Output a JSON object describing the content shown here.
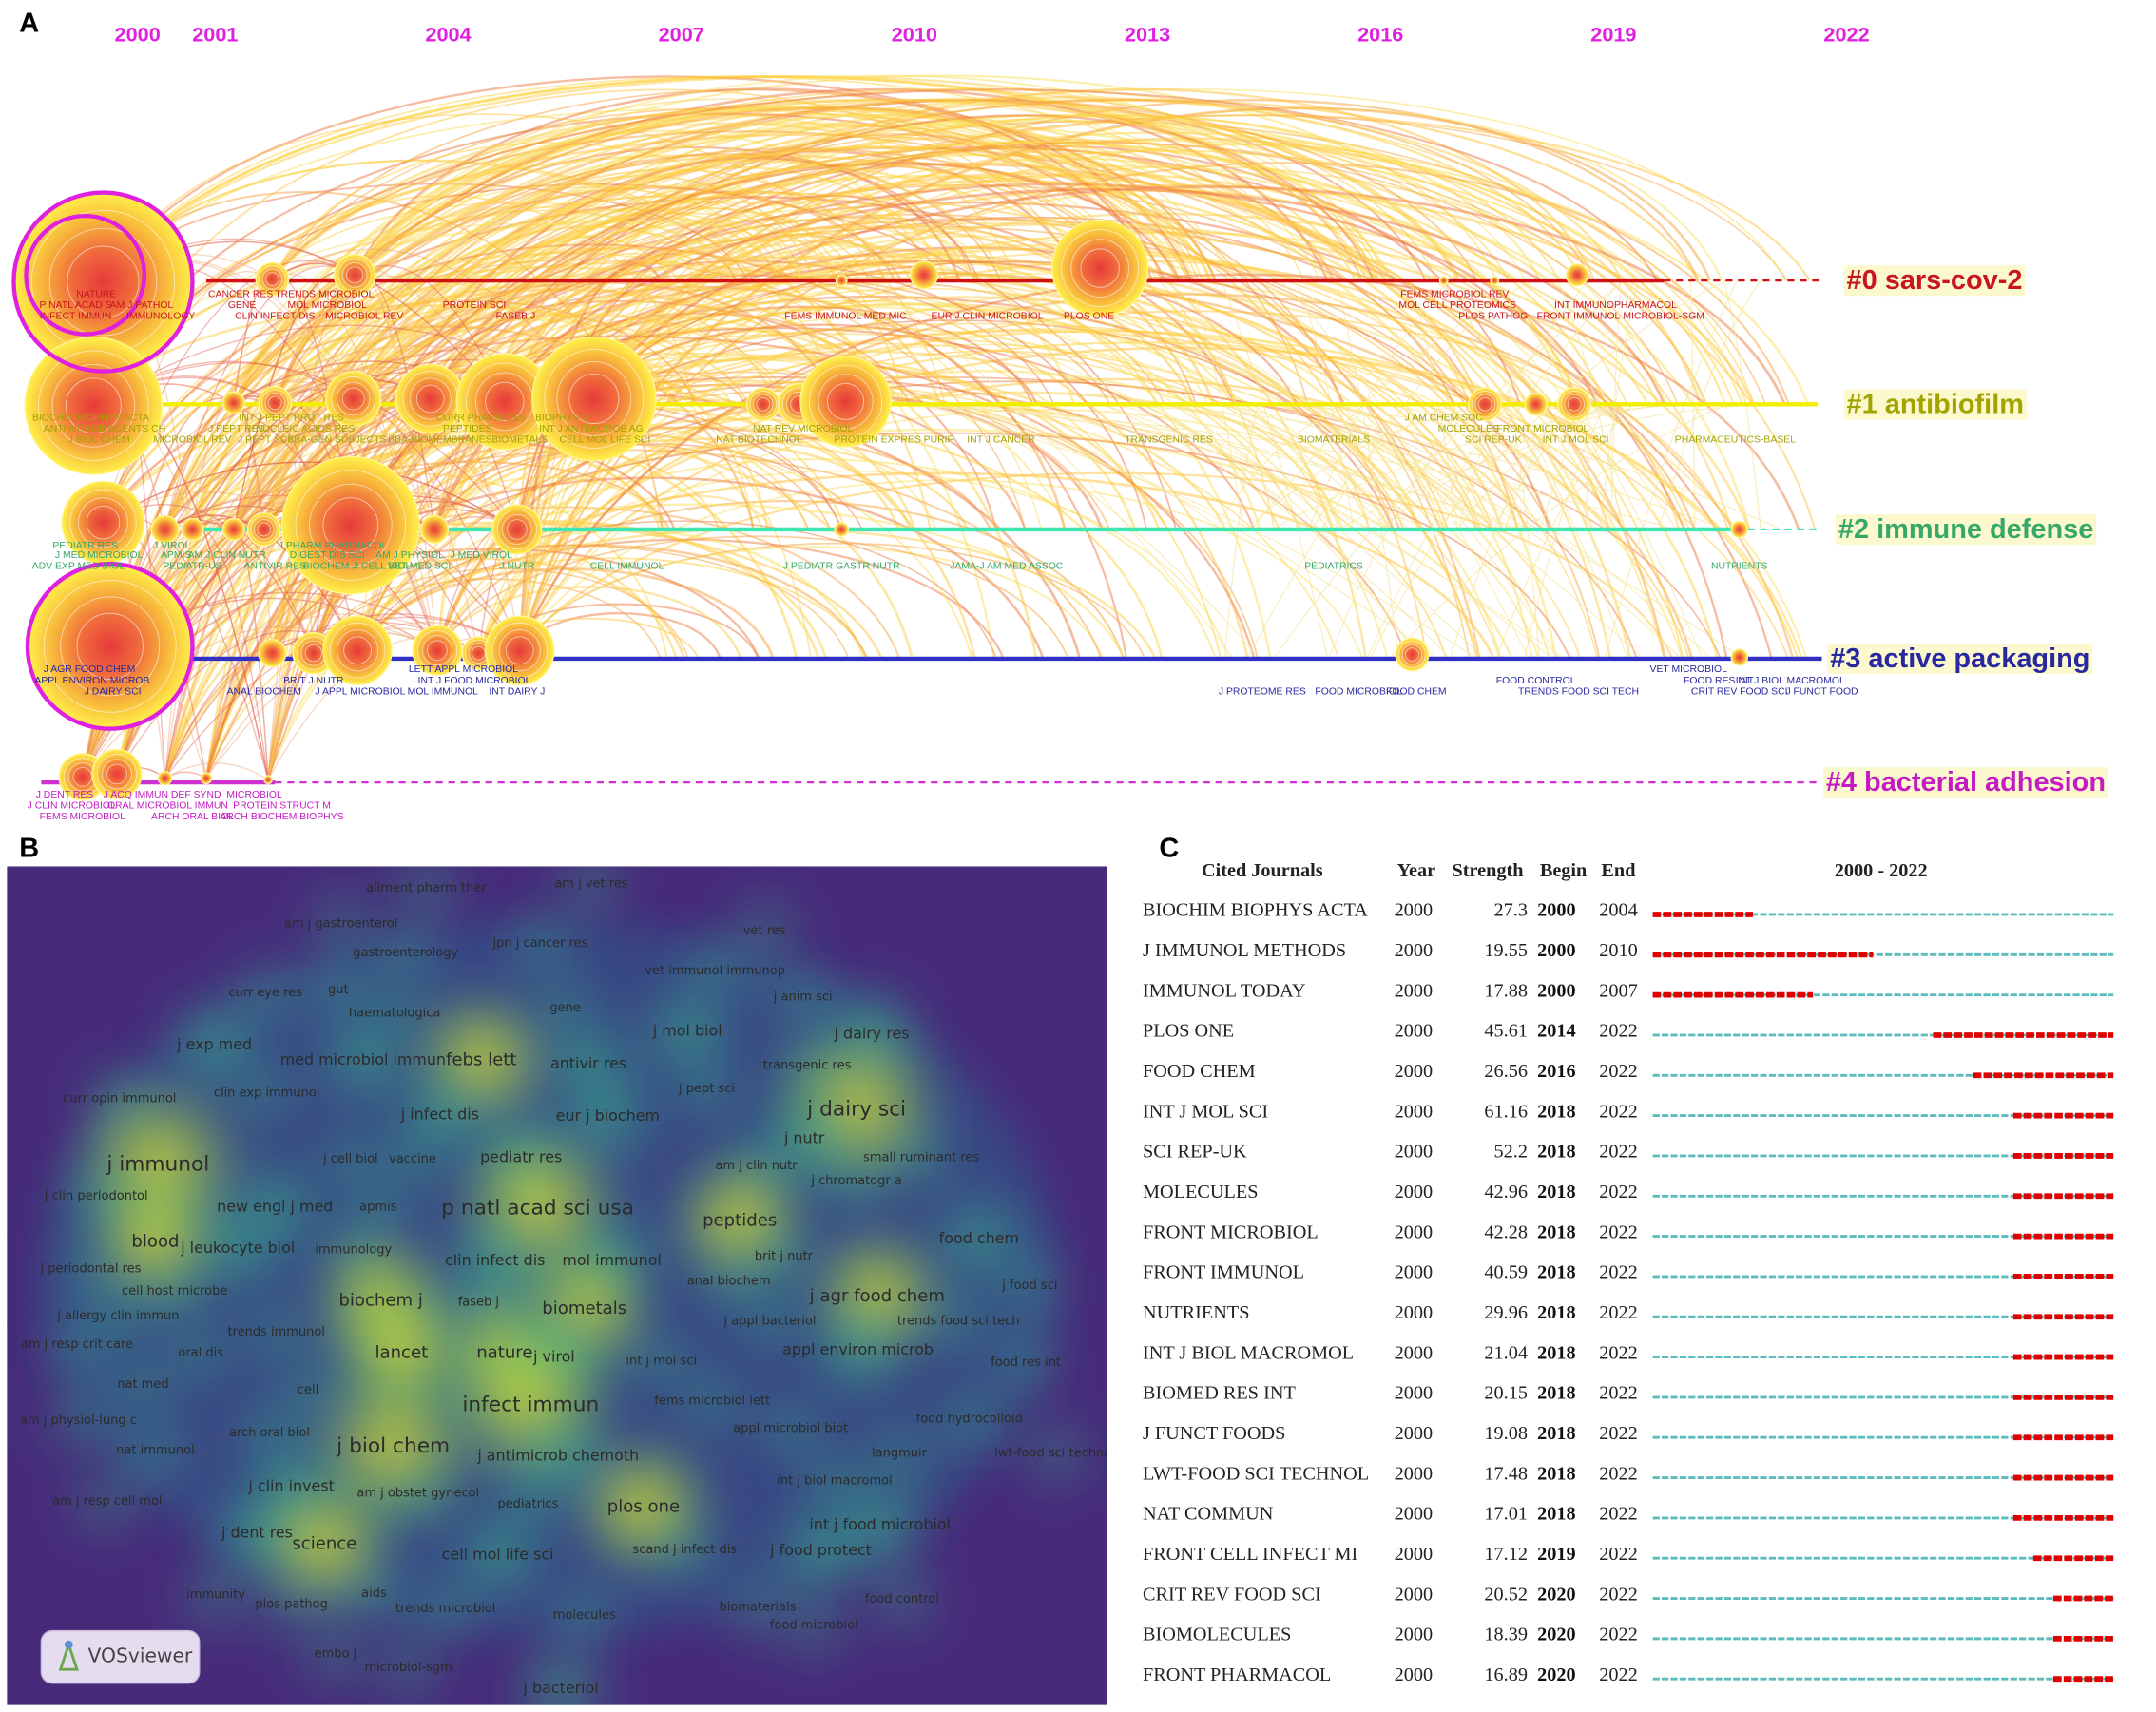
{
  "panels": {
    "a": "A",
    "b": "B",
    "c": "C"
  },
  "timeline": {
    "years": [
      2000,
      2001,
      2004,
      2007,
      2010,
      2013,
      2016,
      2019,
      2022
    ],
    "clusters": [
      {
        "label": "#0 sars-cov-2",
        "color": "#c8161e",
        "nodes": [
          "NATURE",
          "P NATL ACAD S",
          "AM J PATHOL",
          "INFECT IMMUN",
          "IMMUNOLOGY",
          "CANCER RES",
          "TRENDS MICROBIOL",
          "GENE",
          "MOL MICROBIOL",
          "CLIN INFECT DIS",
          "MICROBIOL REV",
          "PROTEIN SCI",
          "FASEB J",
          "FEMS IMMUNOL MED MIC",
          "EUR J CLIN MICROBIOL",
          "PLOS ONE",
          "FEMS MICROBIOL REV",
          "MOL CELL PROTEOMICS",
          "PLOS PATHOG",
          "INT IMMUNOPHARMACOL",
          "FRONT IMMUNOL",
          "MICROBIOL-SGM"
        ]
      },
      {
        "label": "#1 antibiofilm",
        "color": "#a3a300",
        "nodes": [
          "BIOCHIM BIOPHYS ACTA",
          "ANTIMICROB AGENTS CH",
          "J BIOL CHEM",
          "MICROBIOL REV",
          "J PEPT RES",
          "INT J PEPT PROT RES",
          "NUCLEIC ACIDS RES",
          "J PEPT SCI",
          "BBA-GEN SUBJECTS",
          "CURR PHARM DES",
          "BIOPHYS J",
          "PEPTIDES",
          "INT J ANTIMICROB AG",
          "BBA-BIOMEMBRANES",
          "BIOMETALS",
          "CELL MOL LIFE SCI",
          "NAT REV MICROBIOL",
          "NAT BIOTECHNOL",
          "PROTEIN EXPRES PURIF",
          "INT J CANCER",
          "TRANSGENIC RES",
          "BIOMATERIALS",
          "J AM CHEM SOC",
          "MOLECULES",
          "FRONT MICROBIOL",
          "SCI REP-UK",
          "INT J MOL SCI",
          "PHARMACEUTICS-BASEL"
        ]
      },
      {
        "label": "#2 immune defense",
        "color": "#38a868",
        "nodes": [
          "PEDIATR RES",
          "J MED MICROBIOL",
          "ADV EXP MED BIOL",
          "J VIROL",
          "APMIS",
          "AM J CLIN NUTR",
          "PEDIATR-US",
          "ANTIVIR RES",
          "J PHARM PHARMACOL",
          "DIGEST DIS SCI",
          "BIOCHEM J",
          "J CELL BIOL",
          "AM J PHYSIOL",
          "VET MED SCI",
          "J MED VIROL",
          "J NUTR",
          "CELL IMMUNOL",
          "J PEDIATR GASTR NUTR",
          "JAMA-J AM MED ASSOC",
          "PEDIATRICS",
          "NUTRIENTS"
        ]
      },
      {
        "label": "#3 active packaging",
        "color": "#2828a0",
        "nodes": [
          "J AGR FOOD CHEM",
          "APPL ENVIRON MICROB",
          "J DAIRY SCI",
          "ANAL BIOCHEM",
          "BRIT J NUTR",
          "J APPL MICROBIOL",
          "MOL IMMUNOL",
          "LETT APPL MICROBIOL",
          "INT J FOOD MICROBIOL",
          "INT DAIRY J",
          "J PROTEOME RES",
          "FOOD MICROBIOL",
          "FOOD CHEM",
          "FOOD CONTROL",
          "TRENDS FOOD SCI TECH",
          "VET MICROBIOL",
          "FOOD RES INT",
          "INT J BIOL MACROMOL",
          "CRIT REV FOOD SCI",
          "J FUNCT FOOD"
        ]
      },
      {
        "label": "#4 bacterial adhesion",
        "color": "#c21cc2",
        "nodes": [
          "J DENT RES",
          "J ACQ IMMUN DEF SYND",
          "MICROBIOL",
          "J CLIN MICROBIOL",
          "ORAL MICROBIOL IMMUN",
          "PROTEIN STRUCT M",
          "FEMS MICROBIOL",
          "ARCH ORAL BIOL",
          "ARCH BIOCHEM BIOPHYS"
        ]
      }
    ]
  },
  "density": {
    "logo": "VOSviewer",
    "terms": [
      "aliment pharm ther",
      "am j vet res",
      "am j gastroenterol",
      "vet res",
      "jpn j cancer res",
      "gastroenterology",
      "vet immunol immunop",
      "curr eye res",
      "gut",
      "j anim sci",
      "haematologica",
      "gene",
      "j mol biol",
      "j dairy res",
      "j exp med",
      "med microbiol immun",
      "febs lett",
      "antivir res",
      "transgenic res",
      "curr opin immunol",
      "clin exp immunol",
      "j pept sci",
      "j dairy sci",
      "j infect dis",
      "eur j biochem",
      "j nutr",
      "j cell biol",
      "vaccine",
      "pediatr res",
      "small ruminant res",
      "j immunol",
      "am j clin nutr",
      "j chromatogr a",
      "j clin periodontol",
      "new engl j med",
      "apmis",
      "p natl acad sci usa",
      "peptides",
      "food chem",
      "blood",
      "j leukocyte biol",
      "immunology",
      "clin infect dis",
      "mol immunol",
      "brit j nutr",
      "j periodontal res",
      "anal biochem",
      "cell host microbe",
      "faseb j",
      "biochem j",
      "biometals",
      "j agr food chem",
      "j food sci",
      "j allergy clin immun",
      "j appl bacteriol",
      "trends food sci tech",
      "trends immunol",
      "am j resp crit care",
      "oral dis",
      "lancet",
      "nature",
      "j virol",
      "int j mol sci",
      "appl environ microb",
      "food res int",
      "nat med",
      "cell",
      "fems microbiol lett",
      "infect immun",
      "am j physiol-lung c",
      "food hydrocolloid",
      "arch oral biol",
      "appl microbiol biot",
      "j biol chem",
      "j antimicrob chemoth",
      "nat immunol",
      "langmuir",
      "lwt-food sci technol",
      "j clin invest",
      "int j biol macromol",
      "am j obstet gynecol",
      "am j resp cell mol",
      "pediatrics",
      "plos one",
      "int j food microbiol",
      "j dent res",
      "science",
      "scand j infect dis",
      "j food protect",
      "cell mol life sci",
      "immunity",
      "aids",
      "plos pathog",
      "trends microbiol",
      "molecules",
      "biomaterials",
      "food control",
      "food microbiol",
      "embo j",
      "microbiol-sgm",
      "j bacteriol"
    ]
  },
  "bursts": {
    "headers": [
      "Cited Journals",
      "Year",
      "Strength",
      "Begin",
      "End"
    ],
    "range_label": "2000 - 2022",
    "xlim": [
      2000,
      2022
    ],
    "rows": [
      {
        "journal": "BIOCHIM BIOPHYS ACTA",
        "year": 2000,
        "strength": 27.3,
        "begin": 2000,
        "end": 2004
      },
      {
        "journal": "J IMMUNOL METHODS",
        "year": 2000,
        "strength": 19.55,
        "begin": 2000,
        "end": 2010
      },
      {
        "journal": "IMMUNOL TODAY",
        "year": 2000,
        "strength": 17.88,
        "begin": 2000,
        "end": 2007
      },
      {
        "journal": "PLOS ONE",
        "year": 2000,
        "strength": 45.61,
        "begin": 2014,
        "end": 2022
      },
      {
        "journal": "FOOD CHEM",
        "year": 2000,
        "strength": 26.56,
        "begin": 2016,
        "end": 2022
      },
      {
        "journal": "INT J MOL SCI",
        "year": 2000,
        "strength": 61.16,
        "begin": 2018,
        "end": 2022
      },
      {
        "journal": "SCI REP-UK",
        "year": 2000,
        "strength": 52.2,
        "begin": 2018,
        "end": 2022
      },
      {
        "journal": "MOLECULES",
        "year": 2000,
        "strength": 42.96,
        "begin": 2018,
        "end": 2022
      },
      {
        "journal": "FRONT MICROBIOL",
        "year": 2000,
        "strength": 42.28,
        "begin": 2018,
        "end": 2022
      },
      {
        "journal": "FRONT IMMUNOL",
        "year": 2000,
        "strength": 40.59,
        "begin": 2018,
        "end": 2022
      },
      {
        "journal": "NUTRIENTS",
        "year": 2000,
        "strength": 29.96,
        "begin": 2018,
        "end": 2022
      },
      {
        "journal": "INT J BIOL MACROMOL",
        "year": 2000,
        "strength": 21.04,
        "begin": 2018,
        "end": 2022
      },
      {
        "journal": "BIOMED RES INT",
        "year": 2000,
        "strength": 20.15,
        "begin": 2018,
        "end": 2022
      },
      {
        "journal": "J FUNCT FOODS",
        "year": 2000,
        "strength": 19.08,
        "begin": 2018,
        "end": 2022
      },
      {
        "journal": "LWT-FOOD SCI TECHNOL",
        "year": 2000,
        "strength": 17.48,
        "begin": 2018,
        "end": 2022
      },
      {
        "journal": "NAT COMMUN",
        "year": 2000,
        "strength": 17.01,
        "begin": 2018,
        "end": 2022
      },
      {
        "journal": "FRONT CELL INFECT MI",
        "year": 2000,
        "strength": 17.12,
        "begin": 2019,
        "end": 2022
      },
      {
        "journal": "CRIT REV FOOD SCI",
        "year": 2000,
        "strength": 20.52,
        "begin": 2020,
        "end": 2022
      },
      {
        "journal": "BIOMOLECULES",
        "year": 2000,
        "strength": 18.39,
        "begin": 2020,
        "end": 2022
      },
      {
        "journal": "FRONT PHARMACOL",
        "year": 2000,
        "strength": 16.89,
        "begin": 2020,
        "end": 2022
      }
    ]
  }
}
